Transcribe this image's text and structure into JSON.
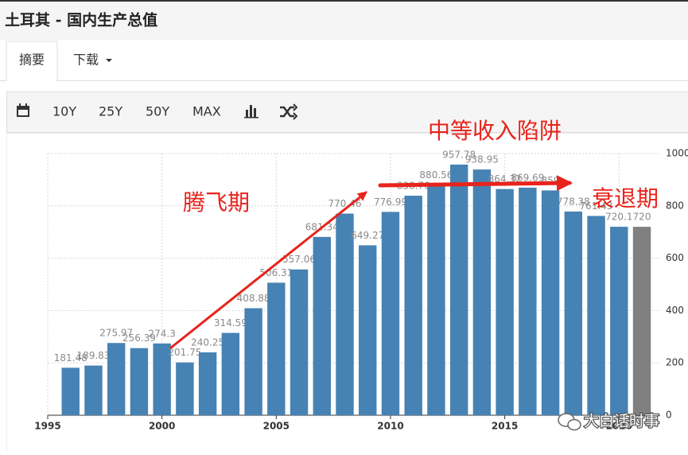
{
  "header": {
    "title": "土耳其 - 国内生产总值"
  },
  "tabs": [
    "摘要",
    "下载"
  ],
  "toolbar": [
    "10Y",
    "25Y",
    "50Y",
    "MAX"
  ],
  "chart_data": {
    "type": "bar",
    "x": [
      1996,
      1997,
      1998,
      1999,
      2000,
      2001,
      2002,
      2003,
      2004,
      2005,
      2006,
      2007,
      2008,
      2009,
      2010,
      2011,
      2012,
      2013,
      2014,
      2015,
      2016,
      2017,
      2018,
      2019,
      2020,
      2021
    ],
    "values": [
      181.48,
      189.83,
      275.97,
      256.39,
      274.3,
      201.75,
      240.25,
      314.59,
      408.88,
      506.31,
      557.06,
      681.34,
      770.46,
      649.27,
      776.99,
      838.76,
      880.56,
      957.78,
      938.95,
      864.32,
      869.69,
      859,
      778.38,
      761.43,
      720.1,
      720
    ],
    "colors": [
      "#4682b4",
      "#4682b4",
      "#4682b4",
      "#4682b4",
      "#4682b4",
      "#4682b4",
      "#4682b4",
      "#4682b4",
      "#4682b4",
      "#4682b4",
      "#4682b4",
      "#4682b4",
      "#4682b4",
      "#4682b4",
      "#4682b4",
      "#4682b4",
      "#4682b4",
      "#4682b4",
      "#4682b4",
      "#4682b4",
      "#4682b4",
      "#4682b4",
      "#4682b4",
      "#4682b4",
      "#4682b4",
      "#808080"
    ],
    "xlim": [
      1995,
      2021.8
    ],
    "xticks": [
      1995,
      2000,
      2005,
      2010,
      2015,
      2020
    ],
    "ylim": [
      0,
      1000
    ],
    "yticks": [
      0,
      200,
      400,
      600,
      800,
      1000
    ],
    "grid": true,
    "annotations": [
      "腾飞期",
      "中等收入陷阱",
      "衰退期"
    ]
  },
  "watermark": "大白话时事"
}
